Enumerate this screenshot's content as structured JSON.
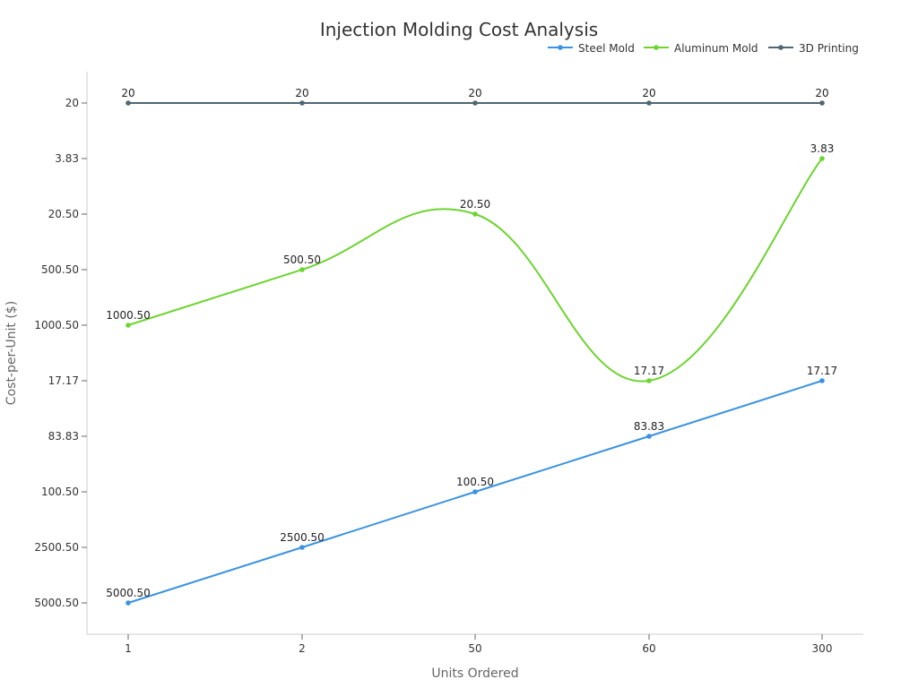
{
  "chart_data": {
    "type": "line",
    "title": "Injection Molding Cost Analysis",
    "xlabel": "Units Ordered",
    "ylabel": "Cost-per-Unit ($)",
    "categories": [
      "1",
      "2",
      "50",
      "60",
      "300"
    ],
    "y_categories": [
      "5000.50",
      "2500.50",
      "100.50",
      "83.83",
      "17.17",
      "1000.50",
      "500.50",
      "20.50",
      "3.83",
      "20"
    ],
    "legend_position": "top-right",
    "grid": false,
    "series": [
      {
        "name": "Steel Mold",
        "color": "#3a92e0",
        "smooth": false,
        "values": [
          "5000.50",
          "2500.50",
          "100.50",
          "83.83",
          "17.17"
        ],
        "labels": [
          "5000.50",
          "2500.50",
          "100.50",
          "83.83",
          "17.17"
        ]
      },
      {
        "name": "Aluminum Mold",
        "color": "#6dd430",
        "smooth": true,
        "values": [
          "1000.50",
          "500.50",
          "20.50",
          "17.17",
          "3.83"
        ],
        "labels": [
          "1000.50",
          "500.50",
          "20.50",
          "17.17",
          "3.83"
        ]
      },
      {
        "name": "3D Printing",
        "color": "#4f6673",
        "smooth": false,
        "values": [
          "20",
          "20",
          "20",
          "20",
          "20"
        ],
        "labels": [
          "20",
          "20",
          "20",
          "20",
          "20"
        ]
      }
    ]
  }
}
